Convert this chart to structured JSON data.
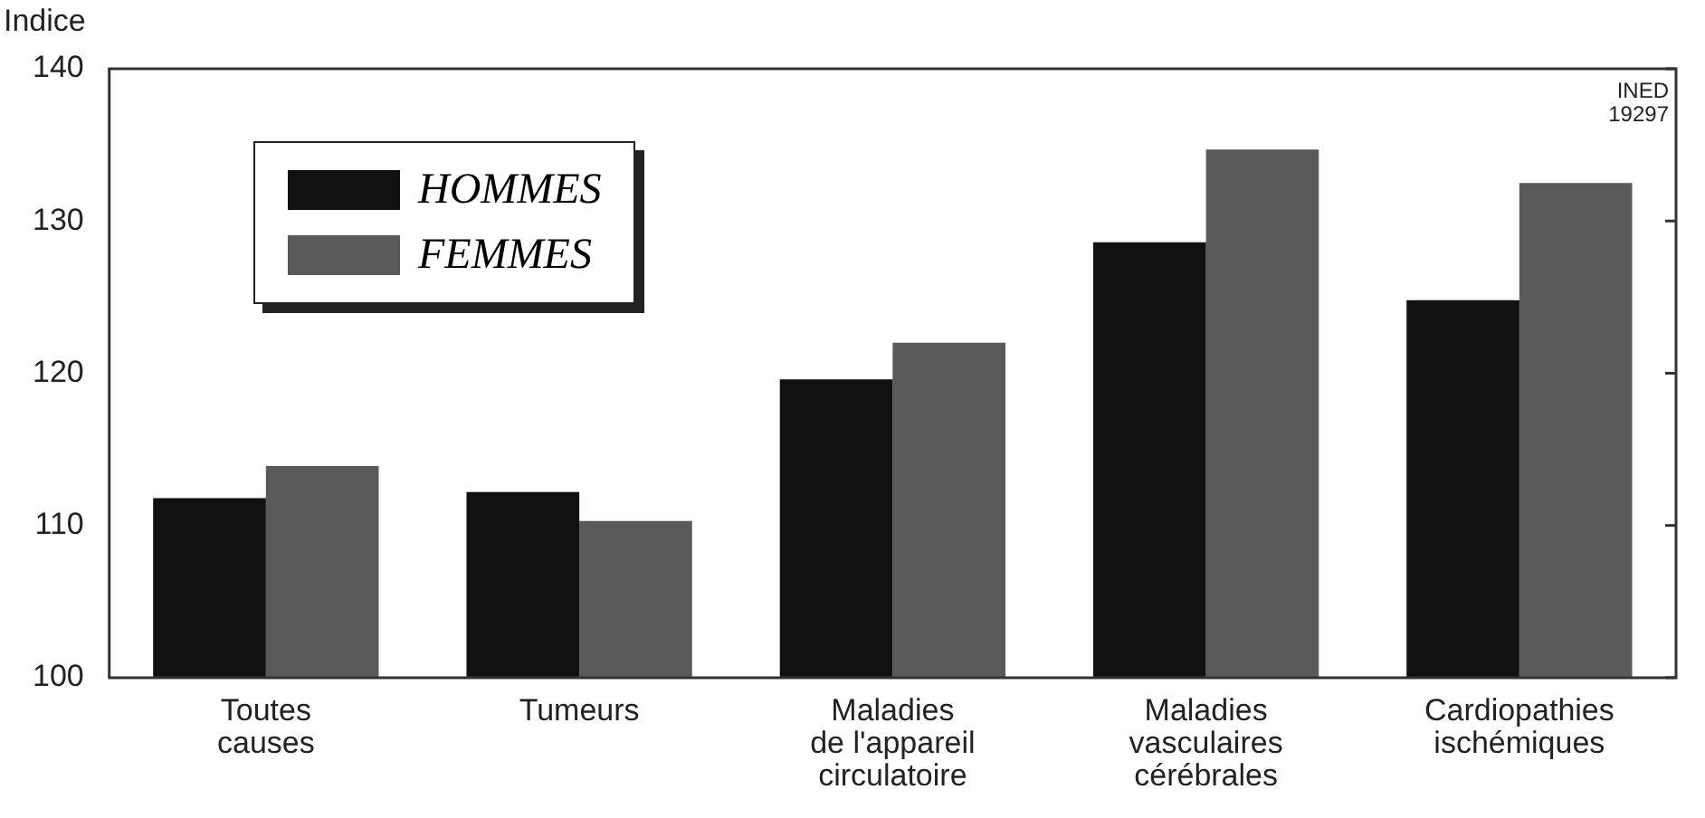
{
  "chart_data": {
    "type": "bar",
    "ylabel": "Indice",
    "categories": [
      "Toutes\ncauses",
      "Tumeurs",
      "Maladies\nde l'appareil\ncirculatoire",
      "Maladies\nvasculaires\ncérébrales",
      "Cardiopathies\nischémiques"
    ],
    "series": [
      {
        "name": "HOMMES",
        "color": "#111111",
        "values": [
          111.8,
          112.2,
          119.6,
          128.6,
          124.8
        ]
      },
      {
        "name": "FEMMES",
        "color": "#5a5a5a",
        "values": [
          113.9,
          110.3,
          122,
          134.7,
          132.5
        ]
      }
    ],
    "ylim": [
      100,
      140
    ],
    "yticks": [
      100,
      110,
      120,
      130,
      140
    ],
    "grid": false,
    "legend": "top left",
    "annotations": [
      "INED\n19297"
    ]
  }
}
